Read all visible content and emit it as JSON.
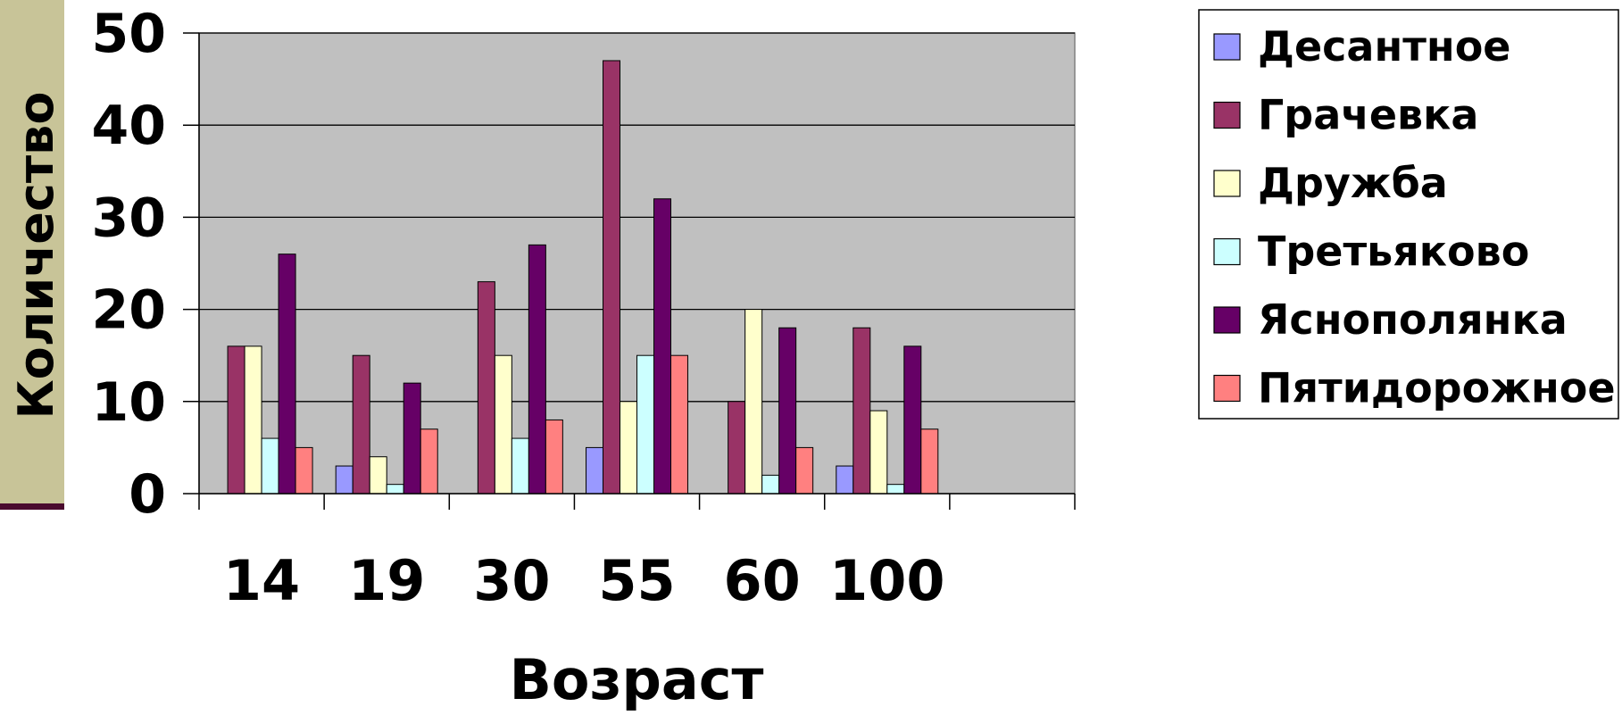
{
  "chart_data": {
    "type": "bar",
    "title": "",
    "xlabel": "Возраст",
    "ylabel": "Количество",
    "categories": [
      "14",
      "19",
      "30",
      "55",
      "60",
      "100",
      ""
    ],
    "ylim": [
      0,
      50
    ],
    "yticks": [
      "0",
      "10",
      "20",
      "30",
      "40",
      "50"
    ],
    "grid": true,
    "legend_position": "right",
    "series": [
      {
        "name": "Десантное",
        "color": "#9999ff",
        "values": [
          0,
          3,
          0,
          5,
          0,
          3,
          null
        ]
      },
      {
        "name": "Грачевка",
        "color": "#993366",
        "values": [
          16,
          15,
          23,
          47,
          10,
          18,
          null
        ]
      },
      {
        "name": "Дружба",
        "color": "#ffffcc",
        "values": [
          16,
          4,
          15,
          10,
          20,
          9,
          null
        ]
      },
      {
        "name": "Третьяково",
        "color": "#ccffff",
        "values": [
          6,
          1,
          6,
          15,
          2,
          1,
          null
        ]
      },
      {
        "name": "Яснополянка",
        "color": "#660066",
        "values": [
          26,
          12,
          27,
          32,
          18,
          16,
          null
        ]
      },
      {
        "name": "Пятидорожное",
        "color": "#ff8080",
        "values": [
          5,
          7,
          8,
          15,
          5,
          7,
          null
        ]
      }
    ],
    "colors": {
      "plot_background": "#c0c0c0",
      "side_tab": "#c8c498",
      "side_tab_accent": "#4a0a2e"
    }
  }
}
